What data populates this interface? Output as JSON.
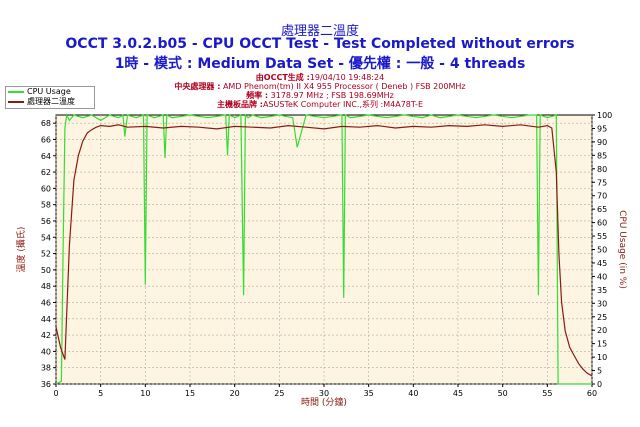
{
  "titles": {
    "line1": "處理器二溫度",
    "line2": "OCCT 3.0.2.b05 - CPU OCCT Test - Test Completed without errors",
    "line3": "1時 - 模式 : Medium Data Set - 優先權 : 一般 - 4 threads"
  },
  "info": {
    "generated_label": "由OCCT生成 :",
    "generated_value": "19/04/10 19:48:24",
    "cpu_label": "中央處理器 :",
    "cpu_value": "AMD Phenom(tm) II X4 955 Processor ( Deneb ) FSB 200MHz",
    "freq_label": "頻率 :",
    "freq_value": "3178.97 MHz ; FSB 198.69MHz",
    "mb_label": "主機板品牌 :",
    "mb_value": "ASUSTeK Computer INC.,系列 :M4A78T-E"
  },
  "colors": {
    "cpu_line": "#33dd33",
    "temp_line": "#8b1a10",
    "plot_bg": "#fdf5e1",
    "axis_text_left": "#8b1a10",
    "title": "#1a1acc"
  },
  "chart_data": {
    "type": "line",
    "xlabel": "時間 (分鐘)",
    "ylabel_left": "溫度 (攝氏)",
    "ylabel_right": "CPU Usage (in %)",
    "xlim": [
      0,
      60
    ],
    "ylim_left": [
      36,
      69
    ],
    "ylim_right": [
      0,
      100
    ],
    "x_ticks": [
      0,
      5,
      10,
      15,
      20,
      25,
      30,
      35,
      40,
      45,
      50,
      55,
      60
    ],
    "y_ticks_left": [
      36,
      38,
      40,
      42,
      44,
      46,
      48,
      50,
      52,
      54,
      56,
      58,
      60,
      62,
      64,
      66,
      68
    ],
    "y_ticks_right": [
      0,
      5,
      10,
      15,
      20,
      25,
      30,
      35,
      40,
      45,
      50,
      55,
      60,
      65,
      70,
      75,
      80,
      85,
      90,
      95,
      100
    ],
    "grid": true,
    "legend": "top-left",
    "series": [
      {
        "name": "CPU Usage",
        "axis": "right",
        "x": [
          0,
          0.6,
          0.8,
          1.0,
          1.2,
          1.5,
          2,
          3,
          4,
          5,
          6,
          7,
          7.5,
          7.7,
          8,
          9,
          9.8,
          10.0,
          10.2,
          11,
          12,
          12.2,
          12.4,
          13,
          15,
          17,
          19,
          19.2,
          19.4,
          20,
          20.7,
          21,
          21.2,
          21.5,
          22,
          23,
          25,
          26.5,
          27,
          28,
          30,
          32,
          32.2,
          32.4,
          33,
          35,
          37,
          39,
          41,
          42,
          43,
          45,
          47,
          49,
          51,
          53,
          53.8,
          54.0,
          54.2,
          55,
          56.0,
          56.2,
          56.5,
          57,
          60
        ],
        "values": [
          0,
          1,
          50,
          95,
          100,
          98,
          100,
          99,
          100,
          98,
          100,
          99,
          100,
          92,
          100,
          99,
          100,
          37,
          100,
          99,
          100,
          84,
          100,
          99,
          100,
          99,
          100,
          85,
          100,
          99,
          100,
          33,
          100,
          99,
          100,
          99,
          100,
          99,
          88,
          100,
          99,
          100,
          32,
          100,
          99,
          100,
          99,
          100,
          99,
          100,
          99,
          100,
          99,
          100,
          99,
          100,
          100,
          33,
          100,
          99,
          100,
          0,
          0,
          0,
          0
        ]
      },
      {
        "name": "處理器二溫度",
        "axis": "left",
        "x": [
          0,
          0.5,
          1.0,
          1.5,
          2,
          2.5,
          3,
          3.5,
          4,
          4.5,
          5,
          6,
          7,
          8,
          10,
          12,
          14,
          16,
          18,
          20,
          22,
          24,
          26,
          28,
          30,
          32,
          34,
          36,
          38,
          40,
          42,
          44,
          46,
          48,
          50,
          52,
          54,
          55,
          55.5,
          56,
          56.3,
          56.6,
          57,
          57.5,
          58,
          58.5,
          59,
          59.5,
          60
        ],
        "values": [
          43,
          40.5,
          39,
          53,
          61,
          64,
          65.8,
          66.8,
          67.2,
          67.5,
          67.7,
          67.6,
          67.8,
          67.5,
          67.6,
          67.4,
          67.6,
          67.5,
          67.3,
          67.6,
          67.5,
          67.4,
          67.7,
          67.5,
          67.3,
          67.6,
          67.5,
          67.7,
          67.4,
          67.6,
          67.5,
          67.7,
          67.6,
          67.8,
          67.6,
          67.8,
          67.5,
          67.7,
          67.4,
          62,
          52,
          46,
          42.5,
          40.5,
          39.5,
          38.5,
          37.8,
          37.3,
          37
        ]
      }
    ]
  }
}
